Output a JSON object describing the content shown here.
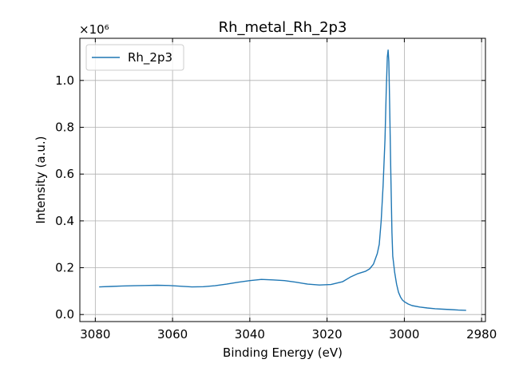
{
  "chart_data": {
    "type": "line",
    "title": "Rh_metal_Rh_2p3",
    "xlabel": "Binding Energy (eV)",
    "ylabel": "Intensity (a.u.)",
    "y_multiplier_label": "×10⁶",
    "xlim": [
      3084,
      2979
    ],
    "ylim": [
      -0.03,
      1.18
    ],
    "x_ticks": [
      3080,
      3060,
      3040,
      3020,
      3000,
      2980
    ],
    "y_ticks": [
      0.0,
      0.2,
      0.4,
      0.6,
      0.8,
      1.0
    ],
    "grid": true,
    "legend_position": "top-left",
    "series": [
      {
        "name": "Rh_2p3",
        "color": "#1f77b4",
        "x": [
          3079,
          3076,
          3073,
          3070,
          3067,
          3064,
          3061,
          3058,
          3055,
          3052,
          3049,
          3046,
          3043,
          3040,
          3037,
          3034,
          3031,
          3028,
          3025,
          3022,
          3019,
          3016,
          3014,
          3012,
          3010,
          3009,
          3008,
          3007,
          3006.5,
          3006,
          3005.5,
          3005,
          3004.7,
          3004.4,
          3004.2,
          3004,
          3003.8,
          3003.5,
          3003.2,
          3003,
          3002.5,
          3002,
          3001.5,
          3001,
          3000.5,
          3000,
          2999,
          2998,
          2996,
          2994,
          2992,
          2990,
          2988,
          2986,
          2984
        ],
        "y": [
          0.118,
          0.12,
          0.122,
          0.123,
          0.124,
          0.125,
          0.124,
          0.121,
          0.118,
          0.119,
          0.123,
          0.13,
          0.138,
          0.145,
          0.15,
          0.148,
          0.145,
          0.138,
          0.13,
          0.126,
          0.128,
          0.14,
          0.16,
          0.175,
          0.185,
          0.195,
          0.215,
          0.26,
          0.3,
          0.4,
          0.55,
          0.75,
          0.95,
          1.1,
          1.13,
          1.08,
          0.9,
          0.6,
          0.35,
          0.25,
          0.18,
          0.13,
          0.095,
          0.075,
          0.062,
          0.055,
          0.045,
          0.038,
          0.032,
          0.028,
          0.025,
          0.023,
          0.021,
          0.019,
          0.018
        ]
      }
    ]
  }
}
